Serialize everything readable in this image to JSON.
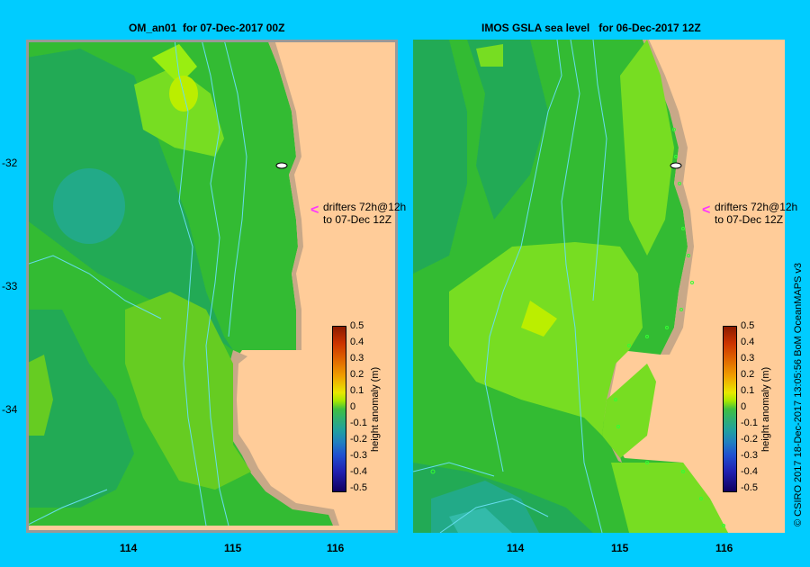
{
  "left_panel": {
    "title": "OM_an01  for 07-Dec-2017 00Z",
    "drifter_line1": "drifters 72h@12h",
    "drifter_line2": "to 07-Dec 12Z"
  },
  "right_panel": {
    "title": "IMOS GSLA sea level   for 06-Dec-2017 12Z",
    "drifter_line1": "drifters 72h@12h",
    "drifter_line2": "to 07-Dec 12Z"
  },
  "y_ticks": [
    "-32",
    "-33",
    "-34"
  ],
  "x_ticks": [
    "114",
    "115",
    "116"
  ],
  "colorbar": {
    "caption": "height anomaly (m)",
    "labels": [
      "0.5",
      "0.4",
      "0.3",
      "0.2",
      "0.1",
      "0",
      "-0.1",
      "-0.2",
      "-0.3",
      "-0.4",
      "-0.5"
    ]
  },
  "copyright": "© CSIRO 2017   18-Dec-2017 13:05:56 BoM OceanMAPS v3",
  "colors": {
    "background": "#00ccff",
    "land": "#ffcc99",
    "coast": "#c8a888",
    "drifter_arrow": "#ff33ff"
  }
}
